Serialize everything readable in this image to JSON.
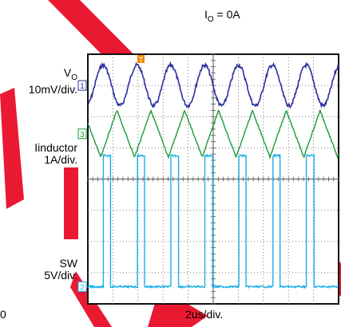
{
  "title": {
    "main": "I",
    "sub": "O",
    "rest": " = 0A"
  },
  "labels": {
    "vo_name": "V",
    "vo_sub": "O",
    "vo_scale": "10mV/div.",
    "il_name": "Iinductor",
    "il_scale": "1A/div.",
    "sw_name": "SW",
    "sw_scale": "5V/div.",
    "time_scale": "2us/div.",
    "corner": "0"
  },
  "chart_data": {
    "type": "line",
    "title": "IO = 0A",
    "xlabel": "2us/div.",
    "grid": true,
    "divisions": {
      "x": 10,
      "y": 8
    },
    "x_unit": "us",
    "x_per_div": 2,
    "period_us": 2.7,
    "channel_markers": [
      "1",
      "3",
      "2"
    ],
    "trigger_marker": "T",
    "series": [
      {
        "name": "VO",
        "scale": "10mV/div.",
        "color": "#2b2f9e",
        "shape": "sine",
        "peak_to_peak_div": 1.3,
        "center_div": 1.0,
        "marker": "1"
      },
      {
        "name": "Iinductor",
        "scale": "1A/div.",
        "color": "#1a9a3a",
        "shape": "triangle",
        "peak_to_peak_div": 1.5,
        "center_div": 2.55,
        "rise_fraction": 0.48,
        "marker": "3"
      },
      {
        "name": "SW",
        "scale": "5V/div.",
        "color": "#1ab0e8",
        "shape": "pulse",
        "high_div": 3.25,
        "low_div": 7.45,
        "duty": 0.22,
        "marker": "2"
      }
    ],
    "colors": {
      "watermark": "#e8001c",
      "screen_border": "#111111",
      "grid": "#555555"
    }
  }
}
